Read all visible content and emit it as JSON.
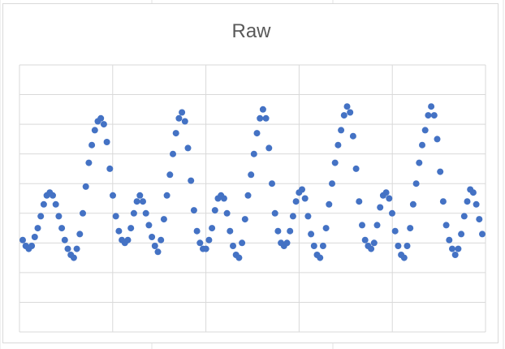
{
  "chart_data": {
    "type": "scatter",
    "title": "Raw",
    "xlabel": "",
    "ylabel": "",
    "ylim": [
      0,
      9
    ],
    "grid": true,
    "legend": "none",
    "marker_color": "#4472c4",
    "series": [
      {
        "points": [
          [
            0,
            3.1
          ],
          [
            1,
            2.9
          ],
          [
            2,
            2.8
          ],
          [
            3,
            2.9
          ],
          [
            4,
            3.2
          ],
          [
            5,
            3.5
          ],
          [
            6,
            3.9
          ],
          [
            7,
            4.3
          ],
          [
            8,
            4.6
          ],
          [
            9,
            4.7
          ],
          [
            10,
            4.6
          ],
          [
            11,
            4.3
          ],
          [
            12,
            3.9
          ],
          [
            13,
            3.5
          ],
          [
            14,
            3.1
          ],
          [
            15,
            2.8
          ],
          [
            16,
            2.6
          ],
          [
            17,
            2.5
          ],
          [
            18,
            2.8
          ],
          [
            19,
            3.3
          ],
          [
            20,
            4.0
          ],
          [
            21,
            4.9
          ],
          [
            22,
            5.7
          ],
          [
            23,
            6.3
          ],
          [
            24,
            6.8
          ],
          [
            25,
            7.1
          ],
          [
            26,
            7.2
          ],
          [
            27,
            7.0
          ],
          [
            28,
            6.4
          ],
          [
            29,
            5.5
          ],
          [
            30,
            4.6
          ],
          [
            31,
            3.9
          ],
          [
            32,
            3.4
          ],
          [
            33,
            3.1
          ],
          [
            34,
            3.0
          ],
          [
            35,
            3.1
          ],
          [
            36,
            3.5
          ],
          [
            37,
            4.0
          ],
          [
            38,
            4.4
          ],
          [
            39,
            4.6
          ],
          [
            40,
            4.4
          ],
          [
            41,
            4.0
          ],
          [
            42,
            3.6
          ],
          [
            43,
            3.2
          ],
          [
            44,
            2.9
          ],
          [
            45,
            2.7
          ],
          [
            46,
            3.1
          ],
          [
            47,
            3.8
          ],
          [
            48,
            4.6
          ],
          [
            49,
            5.3
          ],
          [
            50,
            6.0
          ],
          [
            51,
            6.7
          ],
          [
            52,
            7.2
          ],
          [
            53,
            7.4
          ],
          [
            54,
            7.1
          ],
          [
            55,
            6.2
          ],
          [
            56,
            5.1
          ],
          [
            57,
            4.1
          ],
          [
            58,
            3.4
          ],
          [
            59,
            3.0
          ],
          [
            60,
            2.8
          ],
          [
            61,
            2.8
          ],
          [
            62,
            3.1
          ],
          [
            63,
            3.5
          ],
          [
            64,
            4.1
          ],
          [
            65,
            4.5
          ],
          [
            66,
            4.6
          ],
          [
            67,
            4.5
          ],
          [
            68,
            4.0
          ],
          [
            69,
            3.4
          ],
          [
            70,
            2.9
          ],
          [
            71,
            2.6
          ],
          [
            72,
            2.5
          ],
          [
            73,
            3.0
          ],
          [
            74,
            3.8
          ],
          [
            75,
            4.6
          ],
          [
            76,
            5.3
          ],
          [
            77,
            6.0
          ],
          [
            78,
            6.7
          ],
          [
            79,
            7.2
          ],
          [
            80,
            7.5
          ],
          [
            81,
            7.2
          ],
          [
            82,
            6.2
          ],
          [
            83,
            5.0
          ],
          [
            84,
            4.0
          ],
          [
            85,
            3.4
          ],
          [
            86,
            3.0
          ],
          [
            87,
            2.9
          ],
          [
            88,
            3.0
          ],
          [
            89,
            3.4
          ],
          [
            90,
            3.9
          ],
          [
            91,
            4.4
          ],
          [
            92,
            4.7
          ],
          [
            93,
            4.8
          ],
          [
            94,
            4.5
          ],
          [
            95,
            3.9
          ],
          [
            96,
            3.3
          ],
          [
            97,
            2.9
          ],
          [
            98,
            2.6
          ],
          [
            99,
            2.5
          ],
          [
            100,
            2.9
          ],
          [
            101,
            3.5
          ],
          [
            102,
            4.3
          ],
          [
            103,
            5.0
          ],
          [
            104,
            5.7
          ],
          [
            105,
            6.3
          ],
          [
            106,
            6.8
          ],
          [
            107,
            7.3
          ],
          [
            108,
            7.6
          ],
          [
            109,
            7.4
          ],
          [
            110,
            6.6
          ],
          [
            111,
            5.5
          ],
          [
            112,
            4.4
          ],
          [
            113,
            3.6
          ],
          [
            114,
            3.1
          ],
          [
            115,
            2.9
          ],
          [
            116,
            2.8
          ],
          [
            117,
            3.0
          ],
          [
            118,
            3.6
          ],
          [
            119,
            4.2
          ],
          [
            120,
            4.6
          ],
          [
            121,
            4.7
          ],
          [
            122,
            4.5
          ],
          [
            123,
            4.0
          ],
          [
            124,
            3.4
          ],
          [
            125,
            2.9
          ],
          [
            126,
            2.6
          ],
          [
            127,
            2.5
          ],
          [
            128,
            2.9
          ],
          [
            129,
            3.5
          ],
          [
            130,
            4.3
          ],
          [
            131,
            5.0
          ],
          [
            132,
            5.7
          ],
          [
            133,
            6.3
          ],
          [
            134,
            6.8
          ],
          [
            135,
            7.3
          ],
          [
            136,
            7.6
          ],
          [
            137,
            7.3
          ],
          [
            138,
            6.5
          ],
          [
            139,
            5.4
          ],
          [
            140,
            4.4
          ],
          [
            141,
            3.6
          ],
          [
            142,
            3.1
          ],
          [
            143,
            2.8
          ],
          [
            144,
            2.6
          ],
          [
            145,
            2.8
          ],
          [
            146,
            3.3
          ],
          [
            147,
            3.9
          ],
          [
            148,
            4.4
          ],
          [
            149,
            4.8
          ],
          [
            150,
            4.7
          ],
          [
            151,
            4.3
          ],
          [
            152,
            3.8
          ],
          [
            153,
            3.3
          ]
        ]
      }
    ]
  }
}
